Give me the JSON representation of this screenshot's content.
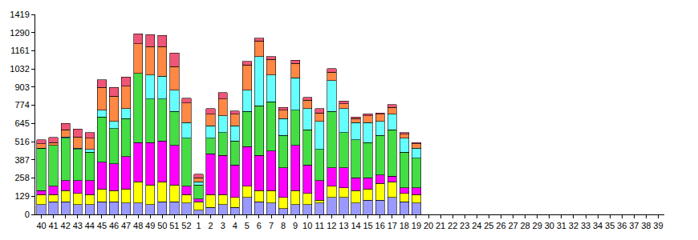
{
  "chart_data": {
    "type": "bar",
    "stacked": true,
    "grid": false,
    "categories": [
      "40",
      "41",
      "42",
      "43",
      "44",
      "45",
      "46",
      "47",
      "48",
      "49",
      "50",
      "51",
      "52",
      "1",
      "2",
      "3",
      "4",
      "5",
      "6",
      "7",
      "8",
      "9",
      "10",
      "11",
      "12",
      "13",
      "14",
      "15",
      "16",
      "17",
      "18",
      "19",
      "20",
      "21",
      "22",
      "23",
      "24",
      "25",
      "26",
      "27",
      "28",
      "29",
      "30",
      "31",
      "32",
      "33",
      "34",
      "35",
      "36",
      "37",
      "38",
      "39"
    ],
    "ylim": [
      0,
      1419
    ],
    "yticks": [
      0,
      129,
      258,
      387,
      516,
      645,
      774,
      903,
      1032,
      1161,
      1290,
      1419
    ],
    "series": [
      {
        "color": "#9999ff",
        "values": [
          70,
          90,
          90,
          70,
          70,
          90,
          90,
          80,
          80,
          70,
          90,
          90,
          80,
          30,
          50,
          70,
          50,
          120,
          90,
          80,
          40,
          70,
          70,
          80,
          120,
          120,
          80,
          100,
          100,
          120,
          90,
          80,
          null,
          null,
          null,
          null,
          null,
          null,
          null,
          null,
          null,
          null,
          null,
          null,
          null,
          null,
          null,
          null,
          null,
          null,
          null,
          null
        ]
      },
      {
        "color": "#ffff00",
        "values": [
          70,
          50,
          80,
          80,
          70,
          90,
          80,
          100,
          150,
          140,
          140,
          120,
          60,
          60,
          90,
          70,
          70,
          80,
          80,
          90,
          80,
          100,
          80,
          20,
          80,
          70,
          90,
          80,
          120,
          110,
          60,
          60,
          null,
          null,
          null,
          null,
          null,
          null,
          null,
          null,
          null,
          null,
          null,
          null,
          null,
          null,
          null,
          null,
          null,
          null,
          null,
          null
        ]
      },
      {
        "color": "#ff00ff",
        "values": [
          30,
          60,
          70,
          90,
          100,
          190,
          190,
          230,
          280,
          300,
          290,
          280,
          60,
          20,
          290,
          280,
          230,
          280,
          250,
          280,
          210,
          320,
          200,
          140,
          130,
          140,
          90,
          80,
          60,
          40,
          40,
          50,
          null,
          null,
          null,
          null,
          null,
          null,
          null,
          null,
          null,
          null,
          null,
          null,
          null,
          null,
          null,
          null,
          null,
          null,
          null,
          null
        ]
      },
      {
        "color": "#44dd44",
        "values": [
          300,
          290,
          300,
          220,
          200,
          320,
          250,
          270,
          490,
          310,
          300,
          240,
          340,
          100,
          110,
          160,
          170,
          250,
          350,
          350,
          230,
          250,
          250,
          220,
          400,
          250,
          270,
          250,
          280,
          330,
          250,
          210,
          null,
          null,
          null,
          null,
          null,
          null,
          null,
          null,
          null,
          null,
          null,
          null,
          null,
          null,
          null,
          null,
          null,
          null,
          null,
          null
        ]
      },
      {
        "color": "#66ffff",
        "values": [
          0,
          0,
          10,
          10,
          20,
          50,
          50,
          70,
          0,
          170,
          160,
          150,
          110,
          20,
          90,
          120,
          110,
          150,
          350,
          190,
          120,
          230,
          150,
          200,
          220,
          170,
          120,
          140,
          100,
          110,
          100,
          70,
          null,
          null,
          null,
          null,
          null,
          null,
          null,
          null,
          null,
          null,
          null,
          null,
          null,
          null,
          null,
          null,
          null,
          null,
          null,
          null
        ]
      },
      {
        "color": "#ff8844",
        "values": [
          30,
          20,
          50,
          80,
          80,
          160,
          180,
          160,
          210,
          200,
          210,
          170,
          140,
          30,
          80,
          120,
          80,
          180,
          110,
          110,
          60,
          100,
          60,
          60,
          60,
          35,
          30,
          50,
          50,
          50,
          30,
          30,
          null,
          null,
          null,
          null,
          null,
          null,
          null,
          null,
          null,
          null,
          null,
          null,
          null,
          null,
          null,
          null,
          null,
          null,
          null,
          null
        ]
      },
      {
        "color": "#ee5577",
        "values": [
          30,
          35,
          45,
          55,
          40,
          55,
          60,
          65,
          70,
          85,
          80,
          95,
          35,
          25,
          40,
          45,
          25,
          25,
          20,
          20,
          20,
          25,
          20,
          30,
          25,
          20,
          10,
          15,
          10,
          20,
          10,
          10,
          null,
          null,
          null,
          null,
          null,
          null,
          null,
          null,
          null,
          null,
          null,
          null,
          null,
          null,
          null,
          null,
          null,
          null,
          null,
          null
        ]
      }
    ]
  }
}
